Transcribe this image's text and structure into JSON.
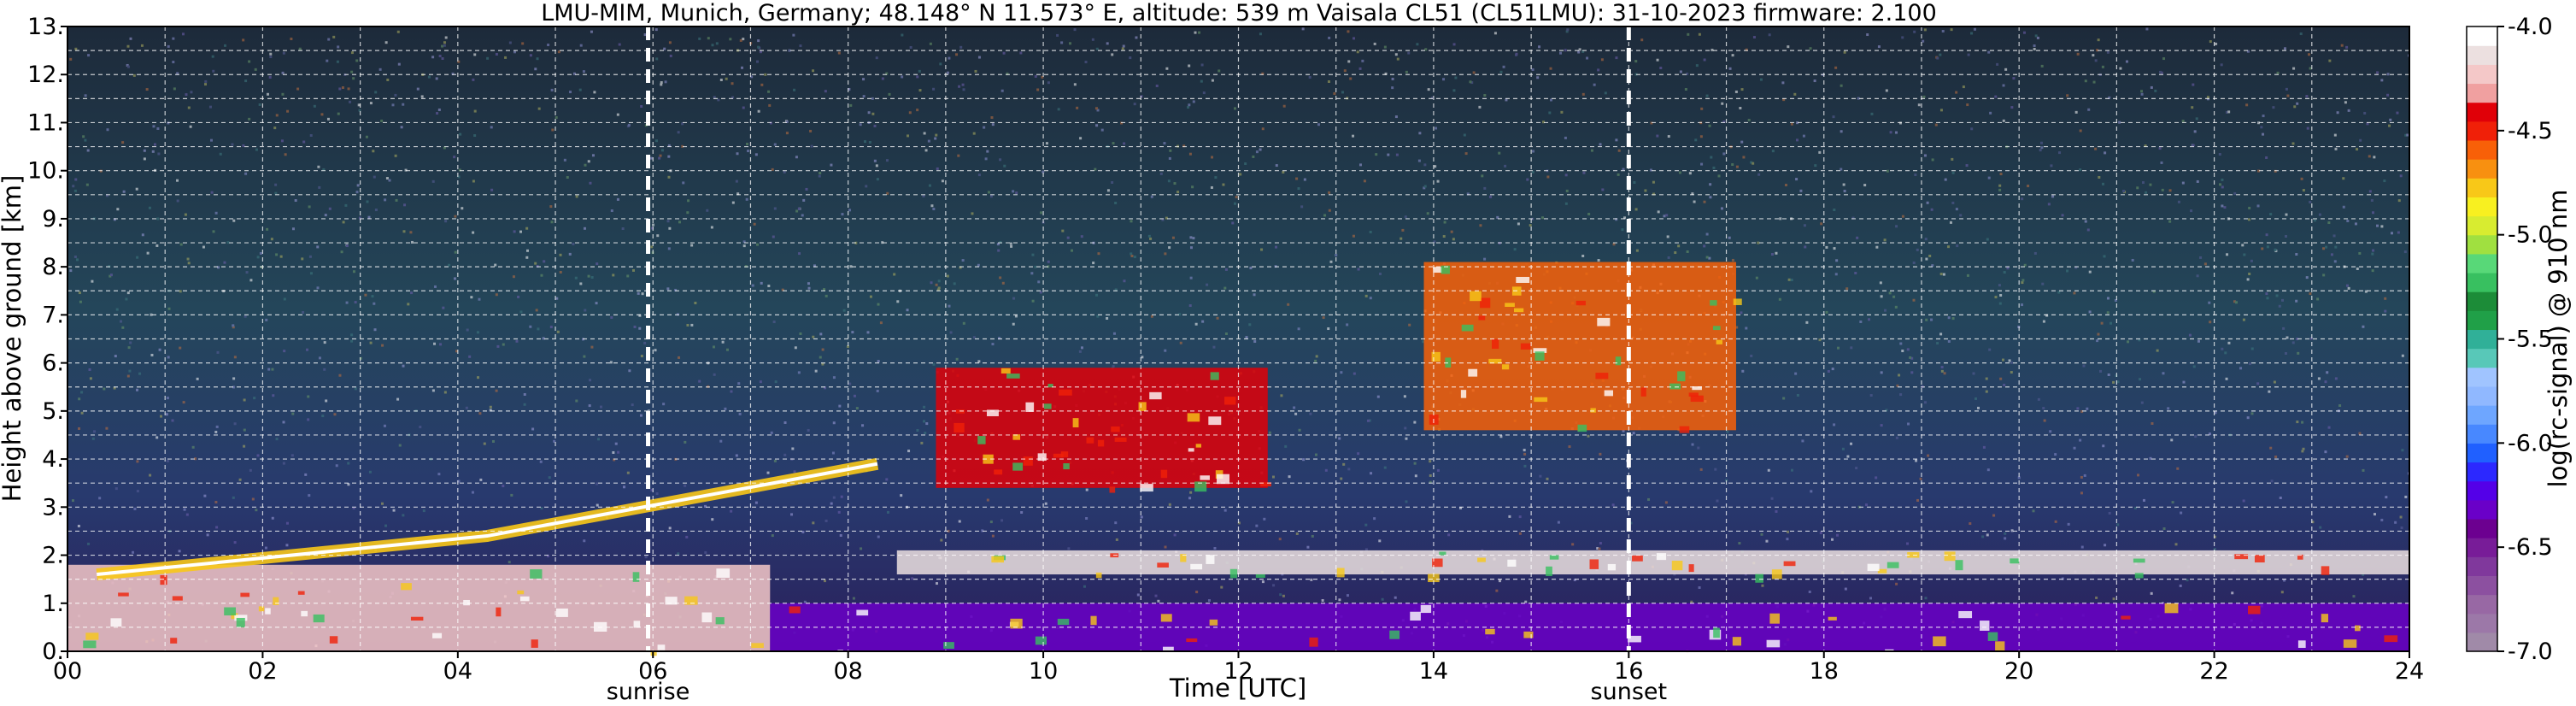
{
  "chart_data": {
    "type": "heatmap",
    "title": "LMU-MIM, Munich, Germany; 48.148° N 11.573° E, altitude: 539 m    Vaisala CL51 (CL51LMU): 31-10-2023    firmware: 2.100",
    "xlabel": "Time [UTC]",
    "ylabel": "Height above ground [km]",
    "xlim": [
      0,
      24
    ],
    "ylim": [
      0,
      13
    ],
    "x_ticks": [
      "00",
      "02",
      "04",
      "06",
      "08",
      "10",
      "12",
      "14",
      "16",
      "18",
      "20",
      "22",
      "24"
    ],
    "y_ticks": [
      "0.",
      "1.",
      "2.",
      "3.",
      "4.",
      "5.",
      "6.",
      "7.",
      "8.",
      "9.",
      "10.",
      "11.",
      "12.",
      "13."
    ],
    "grid": true,
    "markers": [
      {
        "time": 5.95,
        "label": "sunrise"
      },
      {
        "time": 16.0,
        "label": "sunset"
      }
    ],
    "colorbar": {
      "label": "log(rc-signal) @ 910 nm",
      "range": [
        -7.0,
        -4.0
      ],
      "ticks": [
        "-4.0",
        "-4.5",
        "-5.0",
        "-5.5",
        "-6.0",
        "-6.5",
        "-7.0"
      ],
      "colors": [
        "#a08aa8",
        "#9c78a8",
        "#9868a4",
        "#8c50a0",
        "#80389c",
        "#781c98",
        "#6c0090",
        "#6a00c8",
        "#5400e8",
        "#2c28ff",
        "#2060ff",
        "#4888ff",
        "#6ea6ff",
        "#90b8ff",
        "#a0c4ff",
        "#58c8b8",
        "#30b098",
        "#20a048",
        "#1c8c38",
        "#38c060",
        "#58d878",
        "#a0e040",
        "#d8ec30",
        "#f8f020",
        "#f8c818",
        "#f89010",
        "#f86008",
        "#f02008",
        "#e00008",
        "#f0a0a0",
        "#f4c8c8",
        "#ece0e0",
        "#ffffff"
      ]
    },
    "features": [
      {
        "type": "boundary_layer",
        "start": 0.0,
        "end": 7.2,
        "base_km": 0.0,
        "top_km": 1.8,
        "log_signal": -4.2
      },
      {
        "type": "elevated_aerosol_layer",
        "start": 0.3,
        "end": 8.3,
        "height_km": [
          1.6,
          2.4,
          3.9
        ],
        "log_signal": -4.8
      },
      {
        "type": "cloud_layer",
        "start": 8.9,
        "end": 12.3,
        "base_km": 3.4,
        "top_km": 5.9,
        "log_signal": -4.4
      },
      {
        "type": "cloud_layer",
        "start": 13.9,
        "end": 17.1,
        "base_km": 4.6,
        "top_km": 8.1,
        "log_signal": -4.6
      },
      {
        "type": "low_cloud_layer",
        "start": 8.5,
        "end": 24.0,
        "base_km": 1.6,
        "top_km": 2.1,
        "log_signal": -4.1
      },
      {
        "type": "surface_layer",
        "start": 7.2,
        "end": 24.0,
        "base_km": 0.0,
        "top_km": 1.0,
        "log_signal": -6.3
      }
    ]
  }
}
